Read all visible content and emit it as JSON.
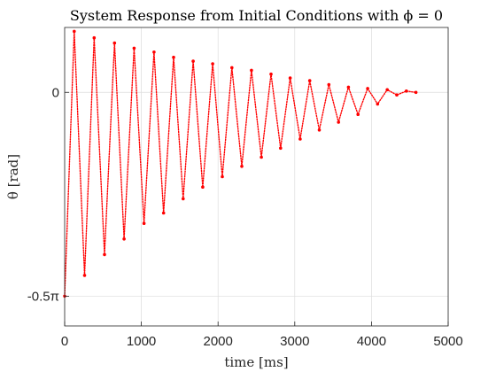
{
  "chart_data": {
    "type": "scatter",
    "title": "System Response from Initial Conditions with ϕ = 0",
    "xlabel": "time [ms]",
    "ylabel": "θ [rad]",
    "xlim": [
      0,
      5000
    ],
    "ylim": [
      -1.8,
      0.5
    ],
    "grid": true,
    "x_ticks": [
      0,
      1000,
      2000,
      3000,
      4000,
      5000
    ],
    "x_tick_labels": [
      "0",
      "1000",
      "2000",
      "3000",
      "4000",
      "5000"
    ],
    "y_ticks": [
      -1.5708,
      0
    ],
    "y_tick_labels": [
      "-0.5π",
      "0"
    ],
    "series": [
      {
        "color": "#ff0000",
        "marker": "dot",
        "x": [
          0,
          125,
          260,
          385,
          520,
          650,
          775,
          905,
          1035,
          1165,
          1290,
          1420,
          1545,
          1675,
          1800,
          1930,
          2055,
          2180,
          2310,
          2435,
          2565,
          2690,
          2815,
          2940,
          3070,
          3195,
          3320,
          3445,
          3570,
          3700,
          3825,
          3950,
          4080,
          4205,
          4330,
          4455,
          4580
        ],
        "y": [
          -1.57,
          0.47,
          -1.41,
          0.42,
          -1.25,
          0.38,
          -1.13,
          0.34,
          -1.01,
          0.31,
          -0.93,
          0.27,
          -0.82,
          0.24,
          -0.73,
          0.22,
          -0.65,
          0.19,
          -0.57,
          0.17,
          -0.5,
          0.14,
          -0.43,
          0.11,
          -0.36,
          0.09,
          -0.29,
          0.06,
          -0.23,
          0.04,
          -0.17,
          0.03,
          -0.09,
          0.02,
          -0.02,
          0.01,
          0.0
        ]
      }
    ]
  }
}
